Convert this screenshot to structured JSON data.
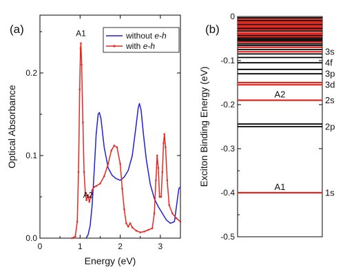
{
  "colors": {
    "without": "#1f1fd6",
    "with": "#e8261f",
    "level_black": "#000000",
    "level_red": "#e8261f"
  },
  "chart_data": [
    {
      "panel": "(a)",
      "type": "line",
      "xlabel": "Energy (eV)",
      "ylabel": "Optical Absorbance",
      "xlim": [
        0,
        3.5
      ],
      "ylim": [
        0,
        0.27
      ],
      "xticks": [
        0,
        1,
        2,
        3
      ],
      "yticks": [
        0.0,
        0.1,
        0.2
      ],
      "ytick_labels": [
        "0.0",
        "0.1",
        "0.2"
      ],
      "legend": {
        "placement": "top-right",
        "entries": [
          "without e-h",
          "with e-h"
        ]
      },
      "annotations": [
        {
          "text": "A1",
          "x": 1.02,
          "y": 0.243
        },
        {
          "text": "A2",
          "x": 1.2,
          "y": 0.052
        }
      ],
      "series": [
        {
          "name": "without e-h",
          "color": "#1f1fd6",
          "marker": false,
          "points": [
            [
              1.15,
              0.0
            ],
            [
              1.2,
              0.004
            ],
            [
              1.25,
              0.015
            ],
            [
              1.3,
              0.04
            ],
            [
              1.35,
              0.08
            ],
            [
              1.4,
              0.125
            ],
            [
              1.45,
              0.15
            ],
            [
              1.48,
              0.152
            ],
            [
              1.52,
              0.145
            ],
            [
              1.6,
              0.11
            ],
            [
              1.7,
              0.085
            ],
            [
              1.8,
              0.076
            ],
            [
              1.9,
              0.072
            ],
            [
              2.0,
              0.07
            ],
            [
              2.1,
              0.074
            ],
            [
              2.2,
              0.082
            ],
            [
              2.3,
              0.1
            ],
            [
              2.38,
              0.13
            ],
            [
              2.45,
              0.158
            ],
            [
              2.48,
              0.163
            ],
            [
              2.52,
              0.155
            ],
            [
              2.58,
              0.125
            ],
            [
              2.65,
              0.095
            ],
            [
              2.75,
              0.065
            ],
            [
              2.85,
              0.048
            ],
            [
              2.95,
              0.038
            ],
            [
              3.05,
              0.03
            ],
            [
              3.15,
              0.022
            ],
            [
              3.25,
              0.018
            ],
            [
              3.35,
              0.02
            ],
            [
              3.42,
              0.045
            ],
            [
              3.46,
              0.06
            ],
            [
              3.5,
              0.062
            ]
          ]
        },
        {
          "name": "with e-h",
          "color": "#e8261f",
          "marker": true,
          "points": [
            [
              0.8,
              0.0
            ],
            [
              0.88,
              0.002
            ],
            [
              0.93,
              0.02
            ],
            [
              0.96,
              0.08
            ],
            [
              0.99,
              0.18
            ],
            [
              1.01,
              0.23
            ],
            [
              1.02,
              0.236
            ],
            [
              1.04,
              0.21
            ],
            [
              1.07,
              0.14
            ],
            [
              1.1,
              0.08
            ],
            [
              1.13,
              0.055
            ],
            [
              1.16,
              0.046
            ],
            [
              1.2,
              0.052
            ],
            [
              1.23,
              0.044
            ],
            [
              1.27,
              0.05
            ],
            [
              1.3,
              0.058
            ],
            [
              1.35,
              0.062
            ],
            [
              1.4,
              0.063
            ],
            [
              1.5,
              0.066
            ],
            [
              1.6,
              0.075
            ],
            [
              1.7,
              0.09
            ],
            [
              1.78,
              0.106
            ],
            [
              1.85,
              0.112
            ],
            [
              1.92,
              0.11
            ],
            [
              2.0,
              0.09
            ],
            [
              2.05,
              0.06
            ],
            [
              2.1,
              0.035
            ],
            [
              2.15,
              0.018
            ],
            [
              2.2,
              0.014
            ],
            [
              2.25,
              0.018
            ],
            [
              2.3,
              0.013
            ],
            [
              2.4,
              0.009
            ],
            [
              2.5,
              0.007
            ],
            [
              2.6,
              0.008
            ],
            [
              2.7,
              0.01
            ],
            [
              2.8,
              0.012
            ],
            [
              2.85,
              0.03
            ],
            [
              2.89,
              0.07
            ],
            [
              2.92,
              0.1
            ],
            [
              2.95,
              0.085
            ],
            [
              2.98,
              0.05
            ],
            [
              3.02,
              0.05
            ],
            [
              3.05,
              0.08
            ],
            [
              3.08,
              0.115
            ],
            [
              3.1,
              0.126
            ],
            [
              3.13,
              0.11
            ],
            [
              3.17,
              0.07
            ],
            [
              3.22,
              0.04
            ],
            [
              3.3,
              0.03
            ],
            [
              3.4,
              0.024
            ],
            [
              3.5,
              0.02
            ]
          ]
        }
      ]
    },
    {
      "panel": "(b)",
      "type": "levels",
      "ylabel": "Exciton Binding Energy (eV)",
      "ylim": [
        -0.5,
        0
      ],
      "yticks": [
        0,
        -0.1,
        -0.2,
        -0.3,
        -0.4,
        -0.5
      ],
      "ytick_labels": [
        "0",
        "-0.1",
        "-0.2",
        "-0.3",
        "-0.4",
        "-0.5"
      ],
      "levels": [
        {
          "e": -0.4,
          "color": "red",
          "label": "1s",
          "tag": "A1"
        },
        {
          "e": -0.25,
          "color": "black",
          "label": "2p"
        },
        {
          "e": -0.244,
          "color": "black"
        },
        {
          "e": -0.19,
          "color": "red",
          "label": "2s",
          "tag": "A2"
        },
        {
          "e": -0.155,
          "color": "red",
          "label": "3d"
        },
        {
          "e": -0.15,
          "color": "red"
        },
        {
          "e": -0.13,
          "color": "black",
          "label": "3p"
        },
        {
          "e": -0.12,
          "color": "black"
        },
        {
          "e": -0.105,
          "color": "black",
          "label": "4f"
        },
        {
          "e": -0.093,
          "color": "black"
        },
        {
          "e": -0.085,
          "color": "black"
        },
        {
          "e": -0.08,
          "color": "red",
          "label": "3s"
        },
        {
          "e": -0.075,
          "color": "black"
        },
        {
          "e": -0.07,
          "color": "red"
        },
        {
          "e": -0.066,
          "color": "black"
        },
        {
          "e": -0.062,
          "color": "black"
        },
        {
          "e": -0.058,
          "color": "red"
        },
        {
          "e": -0.055,
          "color": "black"
        },
        {
          "e": -0.052,
          "color": "black"
        },
        {
          "e": -0.049,
          "color": "black"
        },
        {
          "e": -0.046,
          "color": "red"
        },
        {
          "e": -0.043,
          "color": "black"
        },
        {
          "e": -0.04,
          "color": "red"
        },
        {
          "e": -0.037,
          "color": "red"
        },
        {
          "e": -0.033,
          "color": "black"
        },
        {
          "e": -0.03,
          "color": "red"
        },
        {
          "e": -0.027,
          "color": "black"
        },
        {
          "e": -0.024,
          "color": "red"
        },
        {
          "e": -0.021,
          "color": "red"
        },
        {
          "e": -0.018,
          "color": "black"
        },
        {
          "e": -0.015,
          "color": "red"
        },
        {
          "e": -0.012,
          "color": "red"
        },
        {
          "e": -0.009,
          "color": "black"
        },
        {
          "e": -0.006,
          "color": "red"
        },
        {
          "e": -0.003,
          "color": "black"
        }
      ]
    }
  ]
}
